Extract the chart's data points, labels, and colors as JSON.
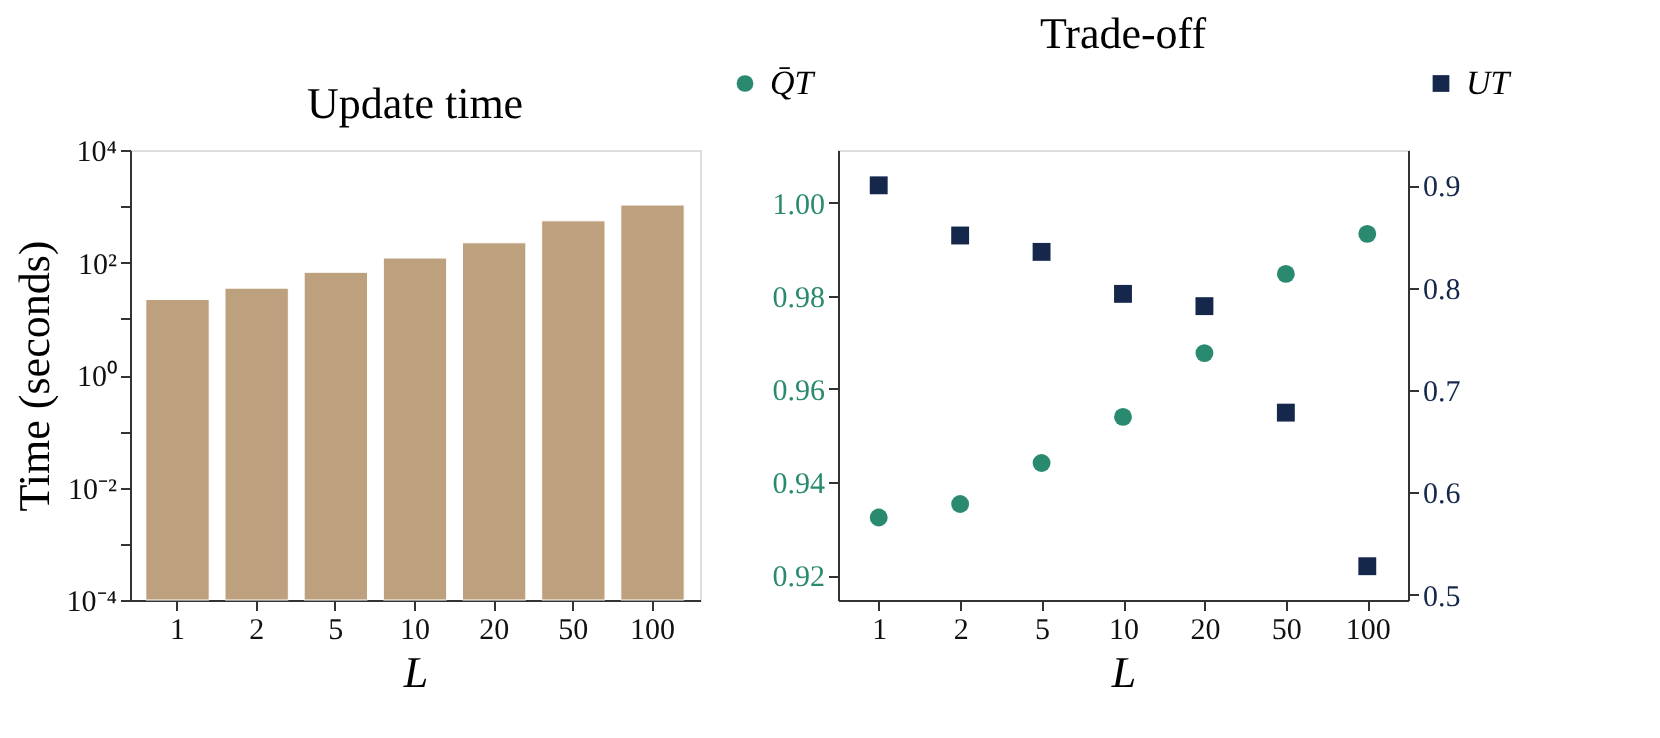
{
  "chart_data": [
    {
      "type": "bar",
      "title": "Update time",
      "xlabel": "L",
      "ylabel": "Time (seconds)",
      "categories": [
        "1",
        "2",
        "5",
        "10",
        "20",
        "50",
        "100"
      ],
      "values": [
        22,
        35,
        67,
        120,
        224,
        550,
        1050
      ],
      "color": "#bda07e",
      "log": true,
      "ylim": [
        0.0001,
        10000
      ],
      "yticks": [
        {
          "value": 0.0001,
          "label": "10⁻⁴"
        },
        {
          "value": 0.001,
          "label": null
        },
        {
          "value": 0.01,
          "label": "10⁻²"
        },
        {
          "value": 0.1,
          "label": null
        },
        {
          "value": 1,
          "label": "10⁰"
        },
        {
          "value": 10,
          "label": null
        },
        {
          "value": 100,
          "label": "10²"
        },
        {
          "value": 1000,
          "label": null
        },
        {
          "value": 10000,
          "label": "10⁴"
        }
      ],
      "grid": false
    },
    {
      "type": "scatter",
      "title": "Trade-off",
      "xlabel": "L",
      "categories": [
        "1",
        "2",
        "5",
        "10",
        "20",
        "50",
        "100"
      ],
      "series": [
        {
          "name": "Q̄T",
          "color": "#2a8a70",
          "marker": "circle",
          "values": [
            0.9324,
            0.9353,
            0.9441,
            0.954,
            0.9677,
            0.9847,
            0.9933
          ]
        },
        {
          "name": "UT",
          "color": "#15284b",
          "marker": "square",
          "axis": "y2",
          "values": [
            0.9,
            0.851,
            0.835,
            0.794,
            0.782,
            0.678,
            0.528
          ]
        }
      ],
      "ylim": [
        0.9147,
        1.0113
      ],
      "yticks": [
        0.92,
        0.94,
        0.96,
        0.98,
        {
          "value": 1.0,
          "label": "1.00"
        }
      ],
      "y2lim": [
        0.495,
        0.9345
      ],
      "y2ticks": [
        0.5,
        0.6,
        0.7,
        0.8,
        0.9
      ],
      "grid": false,
      "legend": "top"
    }
  ]
}
